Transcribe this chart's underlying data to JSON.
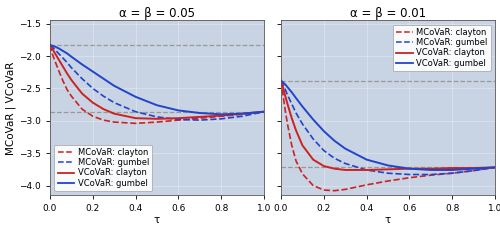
{
  "panel1_title": "α = β = 0.05",
  "panel2_title": "α = β = 0.01",
  "ylabel": "MCoVaR | VCoVaR",
  "xlabel": "τ",
  "ylim": [
    -4.15,
    -1.45
  ],
  "yticks": [
    -4.0,
    -3.5,
    -3.0,
    -2.5,
    -2.0,
    -1.5
  ],
  "xticks": [
    0.0,
    0.2,
    0.4,
    0.6,
    0.8,
    1.0
  ],
  "background_color": "#c8d4e3",
  "panel1": {
    "hline1": -1.83,
    "hline2": -2.86,
    "MCoVaR_clayton": {
      "tau": [
        0.0,
        0.01,
        0.02,
        0.04,
        0.06,
        0.08,
        0.1,
        0.15,
        0.2,
        0.25,
        0.3,
        0.4,
        0.5,
        0.6,
        0.7,
        0.8,
        0.9,
        1.0
      ],
      "val": [
        -1.83,
        -1.96,
        -2.05,
        -2.22,
        -2.38,
        -2.52,
        -2.62,
        -2.82,
        -2.93,
        -2.99,
        -3.02,
        -3.04,
        -3.02,
        -2.99,
        -2.96,
        -2.93,
        -2.9,
        -2.86
      ]
    },
    "MCoVaR_gumbel": {
      "tau": [
        0.0,
        0.01,
        0.02,
        0.04,
        0.06,
        0.08,
        0.1,
        0.15,
        0.2,
        0.25,
        0.3,
        0.4,
        0.5,
        0.6,
        0.7,
        0.8,
        0.9,
        1.0
      ],
      "val": [
        -1.83,
        -1.86,
        -1.89,
        -1.96,
        -2.03,
        -2.1,
        -2.18,
        -2.35,
        -2.5,
        -2.62,
        -2.72,
        -2.86,
        -2.94,
        -2.98,
        -2.99,
        -2.97,
        -2.93,
        -2.86
      ]
    },
    "VCoVaR_clayton": {
      "tau": [
        0.0,
        0.01,
        0.02,
        0.04,
        0.06,
        0.08,
        0.1,
        0.15,
        0.2,
        0.25,
        0.3,
        0.4,
        0.5,
        0.6,
        0.7,
        0.8,
        0.9,
        1.0
      ],
      "val": [
        -1.83,
        -1.88,
        -1.94,
        -2.05,
        -2.16,
        -2.27,
        -2.37,
        -2.58,
        -2.72,
        -2.82,
        -2.89,
        -2.96,
        -2.97,
        -2.96,
        -2.94,
        -2.92,
        -2.89,
        -2.86
      ]
    },
    "VCoVaR_gumbel": {
      "tau": [
        0.0,
        0.01,
        0.02,
        0.04,
        0.06,
        0.08,
        0.1,
        0.15,
        0.2,
        0.25,
        0.3,
        0.4,
        0.5,
        0.6,
        0.7,
        0.8,
        0.9,
        1.0
      ],
      "val": [
        -1.83,
        -1.84,
        -1.85,
        -1.88,
        -1.92,
        -1.96,
        -2.01,
        -2.13,
        -2.24,
        -2.35,
        -2.46,
        -2.63,
        -2.76,
        -2.84,
        -2.88,
        -2.9,
        -2.89,
        -2.86
      ]
    }
  },
  "panel2": {
    "hline1": -2.38,
    "hline2": -3.72,
    "MCoVaR_clayton": {
      "tau": [
        0.0,
        0.01,
        0.02,
        0.03,
        0.05,
        0.07,
        0.1,
        0.15,
        0.2,
        0.25,
        0.3,
        0.4,
        0.5,
        0.6,
        0.7,
        0.8,
        0.9,
        1.0
      ],
      "val": [
        -2.38,
        -2.62,
        -2.85,
        -3.05,
        -3.38,
        -3.62,
        -3.82,
        -4.0,
        -4.07,
        -4.08,
        -4.06,
        -3.99,
        -3.93,
        -3.88,
        -3.84,
        -3.81,
        -3.77,
        -3.72
      ]
    },
    "MCoVaR_gumbel": {
      "tau": [
        0.0,
        0.01,
        0.02,
        0.03,
        0.05,
        0.07,
        0.1,
        0.15,
        0.2,
        0.25,
        0.3,
        0.4,
        0.5,
        0.6,
        0.7,
        0.8,
        0.9,
        1.0
      ],
      "val": [
        -2.38,
        -2.45,
        -2.52,
        -2.6,
        -2.74,
        -2.88,
        -3.05,
        -3.28,
        -3.46,
        -3.58,
        -3.66,
        -3.76,
        -3.81,
        -3.83,
        -3.83,
        -3.81,
        -3.77,
        -3.72
      ]
    },
    "VCoVaR_clayton": {
      "tau": [
        0.0,
        0.01,
        0.02,
        0.03,
        0.05,
        0.07,
        0.1,
        0.15,
        0.2,
        0.25,
        0.3,
        0.4,
        0.5,
        0.6,
        0.7,
        0.8,
        0.9,
        1.0
      ],
      "val": [
        -2.38,
        -2.5,
        -2.62,
        -2.74,
        -2.96,
        -3.15,
        -3.38,
        -3.6,
        -3.7,
        -3.74,
        -3.76,
        -3.76,
        -3.75,
        -3.74,
        -3.74,
        -3.73,
        -3.73,
        -3.72
      ]
    },
    "VCoVaR_gumbel": {
      "tau": [
        0.0,
        0.01,
        0.02,
        0.03,
        0.05,
        0.07,
        0.1,
        0.15,
        0.2,
        0.25,
        0.3,
        0.4,
        0.5,
        0.6,
        0.7,
        0.8,
        0.9,
        1.0
      ],
      "val": [
        -2.38,
        -2.41,
        -2.44,
        -2.48,
        -2.56,
        -2.65,
        -2.78,
        -2.98,
        -3.16,
        -3.31,
        -3.43,
        -3.6,
        -3.69,
        -3.74,
        -3.76,
        -3.76,
        -3.74,
        -3.72
      ]
    }
  },
  "color_red": "#cc2222",
  "color_blue": "#2244cc",
  "color_grey_dashed": "#999999",
  "legend_labels": [
    "MCoVaR: clayton",
    "MCoVaR: gumbel",
    "VCoVaR: clayton",
    "VCoVaR: gumbel"
  ],
  "legend_fontsize": 6.0,
  "title_fontsize": 8.5,
  "axis_fontsize": 7.5,
  "tick_fontsize": 6.5
}
